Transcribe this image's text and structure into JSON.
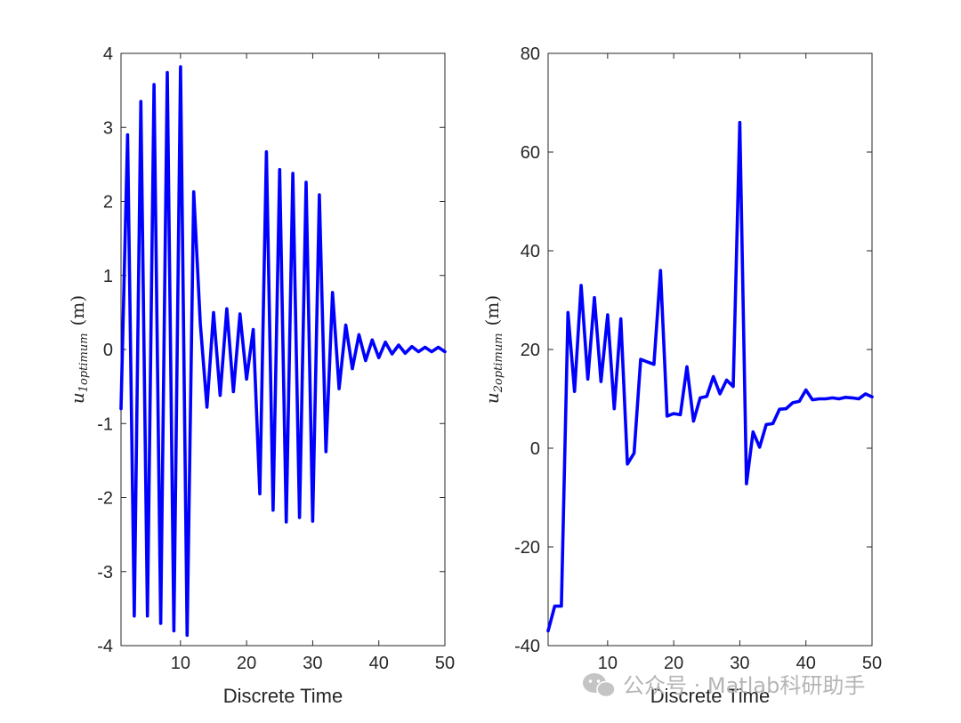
{
  "chart_data": [
    {
      "type": "line",
      "xlabel": "Discrete Time",
      "ylabel": {
        "symbol": "u",
        "subscript": "1optimum",
        "unit": "(m)"
      },
      "xlim": [
        1,
        50
      ],
      "ylim": [
        -4,
        4
      ],
      "xticks": [
        10,
        20,
        30,
        40,
        50
      ],
      "yticks": [
        -4,
        -3,
        -2,
        -1,
        0,
        1,
        2,
        3,
        4
      ],
      "grid": false,
      "series": [
        {
          "color": "#0000ff",
          "x": [
            1,
            2,
            3,
            4,
            5,
            6,
            7,
            8,
            9,
            10,
            11,
            12,
            13,
            14,
            15,
            16,
            17,
            18,
            19,
            20,
            21,
            22,
            23,
            24,
            25,
            26,
            27,
            28,
            29,
            30,
            31,
            32,
            33,
            34,
            35,
            36,
            37,
            38,
            39,
            40,
            41,
            42,
            43,
            44,
            45,
            46,
            47,
            48,
            49,
            50
          ],
          "y": [
            -0.8,
            2.9,
            -3.6,
            3.35,
            -3.6,
            3.58,
            -3.7,
            3.74,
            -3.8,
            3.82,
            -3.86,
            2.13,
            0.35,
            -0.78,
            0.5,
            -0.62,
            0.55,
            -0.57,
            0.48,
            -0.4,
            0.27,
            -1.95,
            2.67,
            -2.17,
            2.43,
            -2.33,
            2.38,
            -2.27,
            2.26,
            -2.32,
            2.09,
            -1.38,
            0.77,
            -0.53,
            0.33,
            -0.26,
            0.2,
            -0.15,
            0.13,
            -0.11,
            0.1,
            -0.06,
            0.06,
            -0.05,
            0.04,
            -0.03,
            0.03,
            -0.03,
            0.03,
            -0.03
          ]
        }
      ]
    },
    {
      "type": "line",
      "xlabel": "Discrete Time",
      "ylabel": {
        "symbol": "u",
        "subscript": "2optimum",
        "unit": "(m)"
      },
      "xlim": [
        1,
        50
      ],
      "ylim": [
        -40,
        80
      ],
      "xticks": [
        10,
        20,
        30,
        40,
        50
      ],
      "yticks": [
        -40,
        -20,
        0,
        20,
        40,
        60,
        80
      ],
      "grid": false,
      "series": [
        {
          "color": "#0000ff",
          "x": [
            1,
            2,
            3,
            4,
            5,
            6,
            7,
            8,
            9,
            10,
            11,
            12,
            13,
            14,
            15,
            16,
            17,
            18,
            19,
            20,
            21,
            22,
            23,
            24,
            25,
            26,
            27,
            28,
            29,
            30,
            31,
            32,
            33,
            34,
            35,
            36,
            37,
            38,
            39,
            40,
            41,
            42,
            43,
            44,
            45,
            46,
            47,
            48,
            49,
            50
          ],
          "y": [
            -37,
            -32,
            -32,
            27.5,
            11.5,
            33,
            14,
            30.5,
            13.5,
            27,
            8,
            26.2,
            -3.2,
            -1,
            18,
            17.5,
            17,
            36,
            6.5,
            7,
            6.8,
            16.5,
            5.5,
            10.2,
            10.5,
            14.5,
            11,
            13.8,
            12.5,
            66,
            -7.2,
            3.3,
            0.2,
            4.8,
            5,
            7.9,
            8,
            9.2,
            9.5,
            11.8,
            9.8,
            10,
            10,
            10.2,
            10,
            10.3,
            10.2,
            10,
            11,
            10.4
          ]
        }
      ]
    }
  ],
  "watermark": {
    "text": "公众号 · Matlab科研助手",
    "icon": "wechat-icon"
  }
}
